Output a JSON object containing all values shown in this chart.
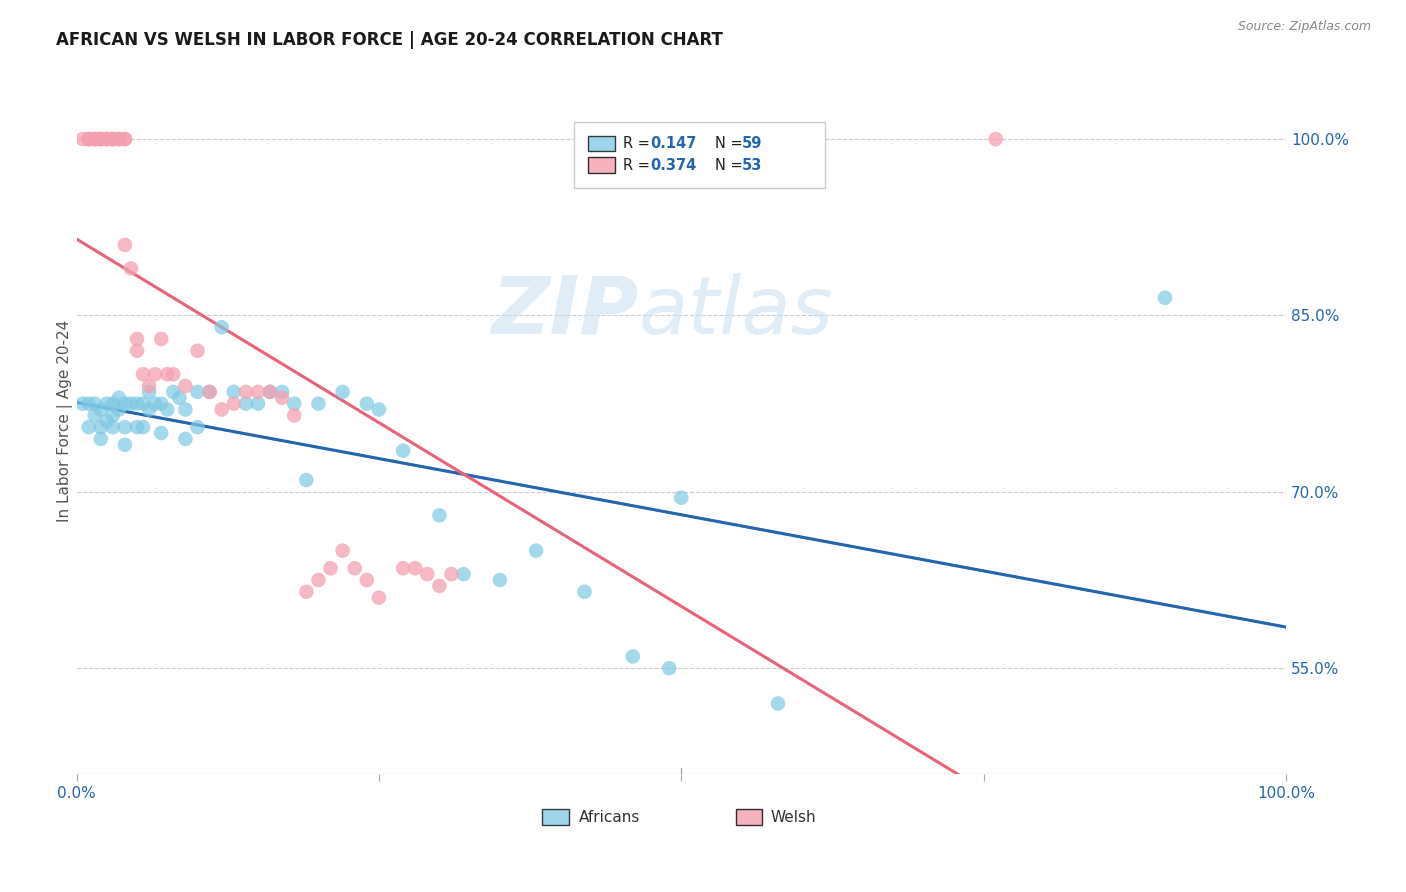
{
  "title": "AFRICAN VS WELSH IN LABOR FORCE | AGE 20-24 CORRELATION CHART",
  "source": "Source: ZipAtlas.com",
  "ylabel": "In Labor Force | Age 20-24",
  "r_african": 0.147,
  "n_african": 59,
  "r_welsh": 0.374,
  "n_welsh": 53,
  "african_color": "#7ec8e3",
  "welsh_color": "#f4a0b0",
  "african_line_color": "#2565ae",
  "welsh_line_color": "#e8637a",
  "xlim": [
    0.0,
    1.0
  ],
  "ylim": [
    0.46,
    1.06
  ],
  "ytick_vals": [
    0.55,
    0.7,
    0.85,
    1.0
  ],
  "ytick_labels": [
    "55.0%",
    "70.0%",
    "85.0%",
    "100.0%"
  ],
  "african_x": [
    0.005,
    0.01,
    0.01,
    0.015,
    0.015,
    0.02,
    0.02,
    0.02,
    0.025,
    0.025,
    0.03,
    0.03,
    0.03,
    0.035,
    0.035,
    0.04,
    0.04,
    0.04,
    0.045,
    0.05,
    0.05,
    0.055,
    0.055,
    0.06,
    0.06,
    0.065,
    0.07,
    0.07,
    0.075,
    0.08,
    0.085,
    0.09,
    0.09,
    0.1,
    0.1,
    0.11,
    0.12,
    0.13,
    0.14,
    0.15,
    0.16,
    0.17,
    0.18,
    0.19,
    0.2,
    0.22,
    0.24,
    0.25,
    0.27,
    0.3,
    0.32,
    0.35,
    0.38,
    0.42,
    0.46,
    0.49,
    0.5,
    0.58,
    0.9
  ],
  "african_y": [
    0.775,
    0.775,
    0.755,
    0.775,
    0.765,
    0.77,
    0.755,
    0.745,
    0.775,
    0.76,
    0.775,
    0.765,
    0.755,
    0.78,
    0.77,
    0.775,
    0.755,
    0.74,
    0.775,
    0.775,
    0.755,
    0.775,
    0.755,
    0.785,
    0.77,
    0.775,
    0.775,
    0.75,
    0.77,
    0.785,
    0.78,
    0.77,
    0.745,
    0.785,
    0.755,
    0.785,
    0.84,
    0.785,
    0.775,
    0.775,
    0.785,
    0.785,
    0.775,
    0.71,
    0.775,
    0.785,
    0.775,
    0.77,
    0.735,
    0.68,
    0.63,
    0.625,
    0.65,
    0.615,
    0.56,
    0.55,
    0.695,
    0.52,
    0.865
  ],
  "welsh_x": [
    0.005,
    0.01,
    0.01,
    0.01,
    0.015,
    0.015,
    0.015,
    0.02,
    0.02,
    0.02,
    0.025,
    0.025,
    0.025,
    0.03,
    0.03,
    0.03,
    0.035,
    0.035,
    0.04,
    0.04,
    0.04,
    0.045,
    0.05,
    0.05,
    0.055,
    0.06,
    0.065,
    0.07,
    0.075,
    0.08,
    0.09,
    0.1,
    0.11,
    0.12,
    0.13,
    0.14,
    0.15,
    0.16,
    0.17,
    0.18,
    0.19,
    0.2,
    0.21,
    0.22,
    0.23,
    0.24,
    0.25,
    0.27,
    0.28,
    0.29,
    0.3,
    0.31,
    0.76
  ],
  "welsh_y": [
    1.0,
    1.0,
    1.0,
    1.0,
    1.0,
    1.0,
    1.0,
    1.0,
    1.0,
    1.0,
    1.0,
    1.0,
    1.0,
    1.0,
    1.0,
    1.0,
    1.0,
    1.0,
    1.0,
    1.0,
    0.91,
    0.89,
    0.82,
    0.83,
    0.8,
    0.79,
    0.8,
    0.83,
    0.8,
    0.8,
    0.79,
    0.82,
    0.785,
    0.77,
    0.775,
    0.785,
    0.785,
    0.785,
    0.78,
    0.765,
    0.615,
    0.625,
    0.635,
    0.65,
    0.635,
    0.625,
    0.61,
    0.635,
    0.635,
    0.63,
    0.62,
    0.63,
    1.0
  ],
  "watermark_zip": "ZIP",
  "watermark_atlas": "atlas"
}
